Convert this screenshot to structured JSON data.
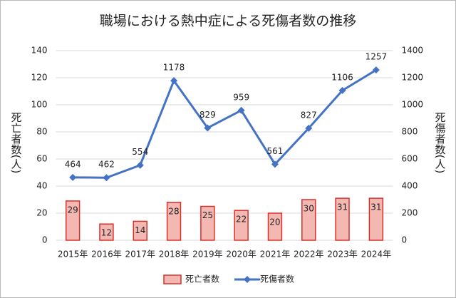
{
  "chart_data": {
    "type": "combo",
    "title": "職場における熱中症による死傷者数の推移",
    "categories": [
      "2015年",
      "2016年",
      "2017年",
      "2018年",
      "2019年",
      "2020年",
      "2021年",
      "2022年",
      "2023年",
      "2024年"
    ],
    "series": [
      {
        "name": "死亡者数",
        "type": "bar",
        "color": "#f4b8b2",
        "edge": "#d9302a",
        "axis": "y",
        "values": [
          29,
          12,
          14,
          28,
          25,
          22,
          20,
          30,
          31,
          31
        ]
      },
      {
        "name": "死傷者数",
        "type": "line",
        "color": "#4472c4",
        "axis": "y2",
        "values": [
          464,
          462,
          554,
          1178,
          829,
          959,
          561,
          827,
          1106,
          1257
        ]
      }
    ],
    "ylabel": "死亡者数(人)",
    "y2label": "死傷者数(人)",
    "ylim": [
      0,
      140
    ],
    "yticks": [
      0,
      20,
      40,
      60,
      80,
      100,
      120,
      140
    ],
    "y2lim": [
      0,
      1400
    ],
    "y2ticks": [
      0,
      200,
      400,
      600,
      800,
      1000,
      1200,
      1400
    ],
    "grid": true,
    "legend": "bottom"
  }
}
